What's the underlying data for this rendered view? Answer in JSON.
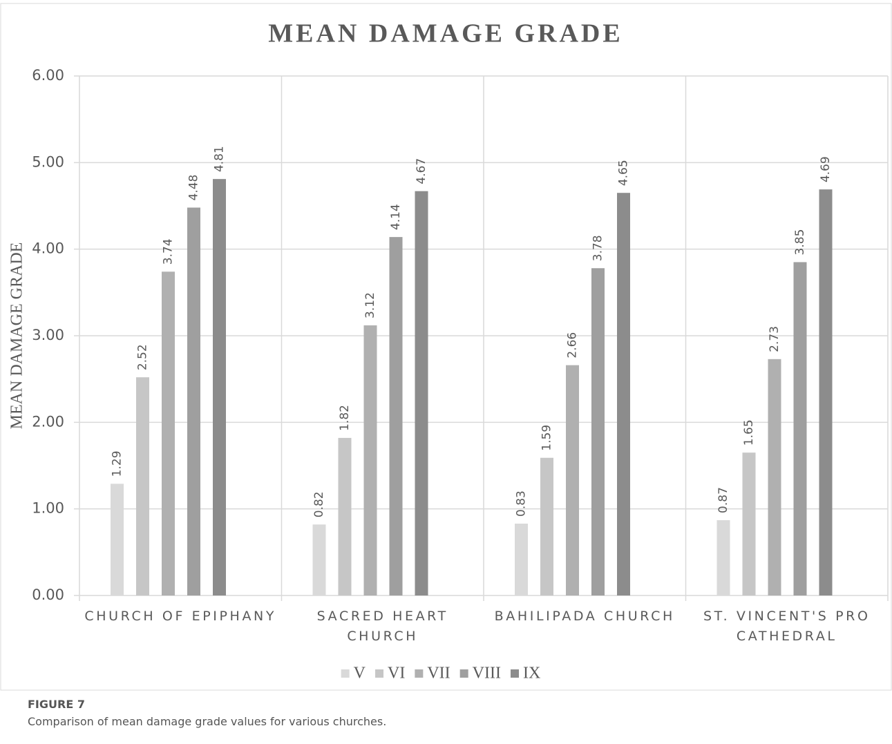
{
  "chart_data": {
    "type": "bar",
    "title": "MEAN DAMAGE GRADE",
    "y_label": "MEAN DAMAGE GRADE",
    "categories": [
      "CHURCH OF EPIPHANY",
      "SACRED HEART CHURCH",
      "BAHILIPADA CHURCH",
      "ST. VINCENT'S PRO CATHEDRAL"
    ],
    "series": [
      {
        "name": "V",
        "color": "#d9d9d9",
        "values": [
          1.29,
          0.82,
          0.83,
          0.87
        ]
      },
      {
        "name": "VI",
        "color": "#c6c6c6",
        "values": [
          2.52,
          1.82,
          1.59,
          1.65
        ]
      },
      {
        "name": "VII",
        "color": "#b0b0b0",
        "values": [
          3.74,
          3.12,
          2.66,
          2.73
        ]
      },
      {
        "name": "VIII",
        "color": "#9f9f9f",
        "values": [
          4.48,
          4.14,
          3.78,
          3.85
        ]
      },
      {
        "name": "IX",
        "color": "#8c8c8c",
        "values": [
          4.81,
          4.67,
          4.65,
          4.69
        ]
      }
    ],
    "ylim": [
      0,
      6
    ],
    "yticks": [
      {
        "value": 0,
        "label": "0.00"
      },
      {
        "value": 1,
        "label": "1.00"
      },
      {
        "value": 2,
        "label": "2.00"
      },
      {
        "value": 3,
        "label": "3.00"
      },
      {
        "value": 4,
        "label": "4.00"
      },
      {
        "value": 5,
        "label": "5.00"
      },
      {
        "value": 6,
        "label": "6.00"
      }
    ],
    "grid": true,
    "legend": "bottom"
  },
  "figure_label": "FIGURE 7",
  "caption": "Comparison of mean damage grade values for various churches."
}
